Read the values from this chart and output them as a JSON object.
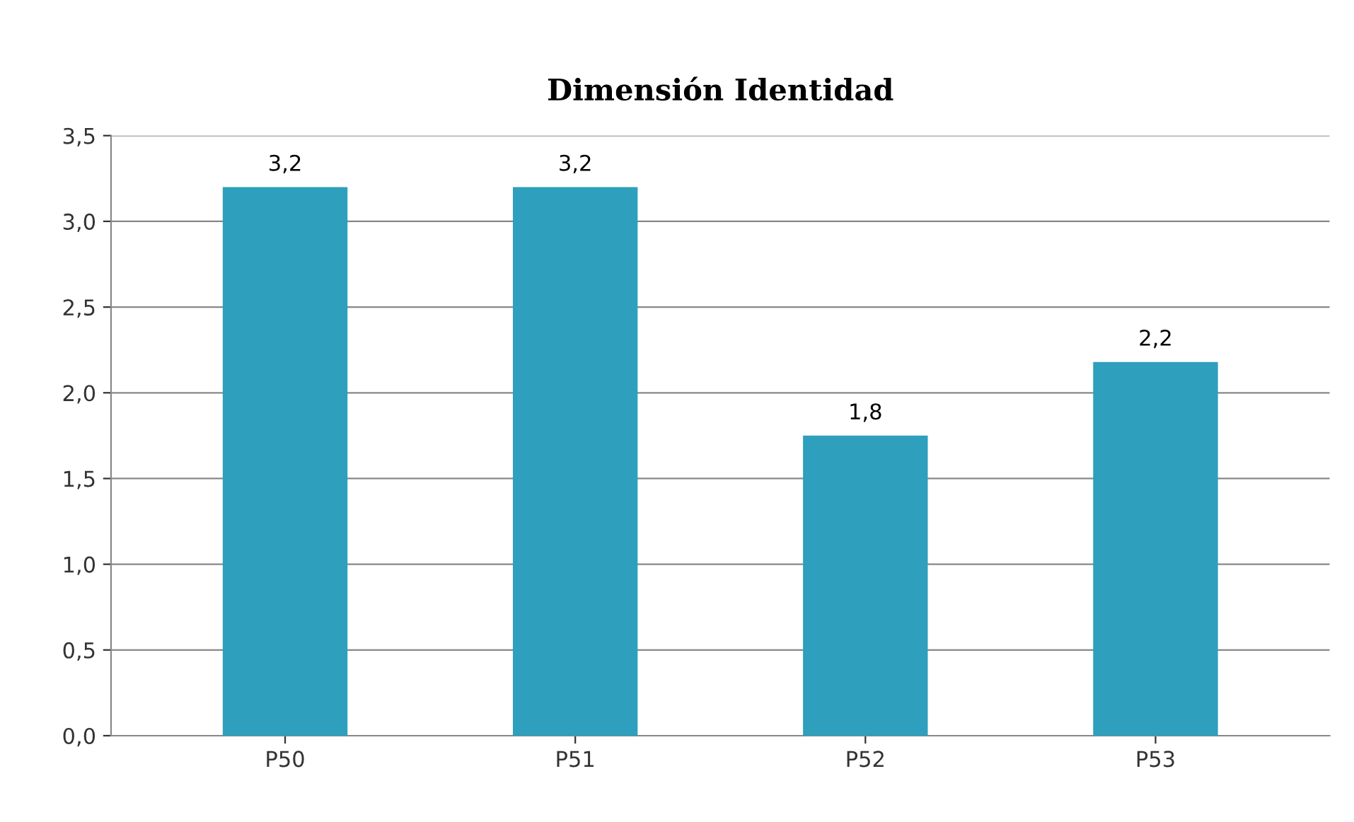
{
  "chart_data": {
    "type": "bar",
    "title": "Dimensión Identidad",
    "categories": [
      "P50",
      "P51",
      "P52",
      "P53"
    ],
    "values": [
      3.2,
      3.2,
      1.75,
      2.18
    ],
    "value_labels": [
      "3,2",
      "3,2",
      "1,8",
      "2,2"
    ],
    "color": "#2e9fbd",
    "ylim": [
      0,
      3.5
    ],
    "yticks": [
      {
        "value": 0,
        "label": "0,0"
      },
      {
        "value": 0.5,
        "label": "0,5"
      },
      {
        "value": 1,
        "label": "1,0"
      },
      {
        "value": 1.5,
        "label": "1,5"
      },
      {
        "value": 2,
        "label": "2,0"
      },
      {
        "value": 2.5,
        "label": "2,5"
      },
      {
        "value": 3,
        "label": "3,0"
      },
      {
        "value": 3.5,
        "label": "3,5"
      }
    ],
    "grid": "y"
  }
}
